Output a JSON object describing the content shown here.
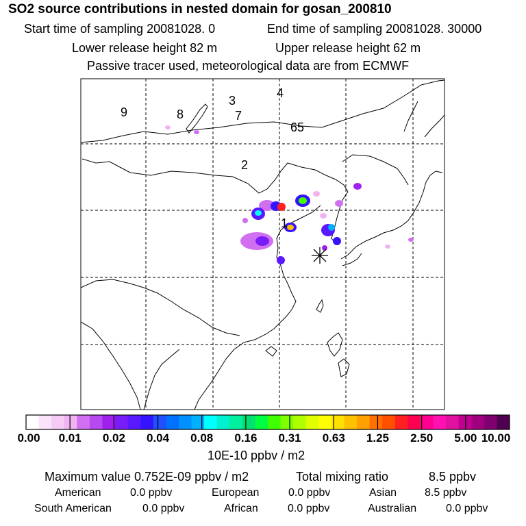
{
  "header": {
    "title": "SO2 source contributions in nested domain for gosan_200810",
    "start_time": "Start time of sampling 20081028.     0",
    "end_time": "End time of sampling 20081028. 30000",
    "lower_height": "Lower release height   82 m",
    "upper_height": "Upper release height   62 m",
    "tracer_note": "Passive tracer used, meteorological data are from ECMWF"
  },
  "map": {
    "region_labels": [
      "1",
      "2",
      "3",
      "4",
      "65",
      "7",
      "8",
      "9"
    ],
    "receptor_marker": "asterisk-icon"
  },
  "colorbar": {
    "ticks": [
      "0.00",
      "0.01",
      "0.02",
      "0.04",
      "0.08",
      "0.16",
      "0.31",
      "0.63",
      "1.25",
      "2.50",
      "5.00",
      "10.00"
    ],
    "colors": [
      "#ffffff",
      "#fbe3fb",
      "#f5cbf5",
      "#f0b2f0",
      "#d070f0",
      "#b848f0",
      "#a020f0",
      "#7a1cf8",
      "#5a18ff",
      "#3414ff",
      "#2050ff",
      "#0070ff",
      "#0090ff",
      "#00b0ff",
      "#00ffff",
      "#00f0d0",
      "#00f0a0",
      "#00e070",
      "#00ff40",
      "#40ff00",
      "#80ff00",
      "#b0ff00",
      "#e0ff00",
      "#ffff00",
      "#ffe000",
      "#ffc000",
      "#ffa000",
      "#ff7000",
      "#ff5000",
      "#ff2020",
      "#ff0050",
      "#ff0090",
      "#ff10b0",
      "#e010a0",
      "#c00090",
      "#a00080",
      "#800070",
      "#500050"
    ],
    "units": "10E-10 ppbv / m2"
  },
  "stats": {
    "max_value": "Maximum value  0.752E-09 ppbv / m2",
    "total_mixing": "Total mixing ratio",
    "total_mixing_value": "8.5 ppbv",
    "american_label": "American",
    "american_value": "0.0 ppbv",
    "european_label": "European",
    "european_value": "0.0 ppbv",
    "asian_label": "Asian",
    "asian_value": "8.5 ppbv",
    "south_american_label": "South American",
    "south_american_value": "0.0 ppbv",
    "african_label": "African",
    "african_value": "0.0 ppbv",
    "australian_label": "Australian",
    "australian_value": "0.0 ppbv"
  }
}
